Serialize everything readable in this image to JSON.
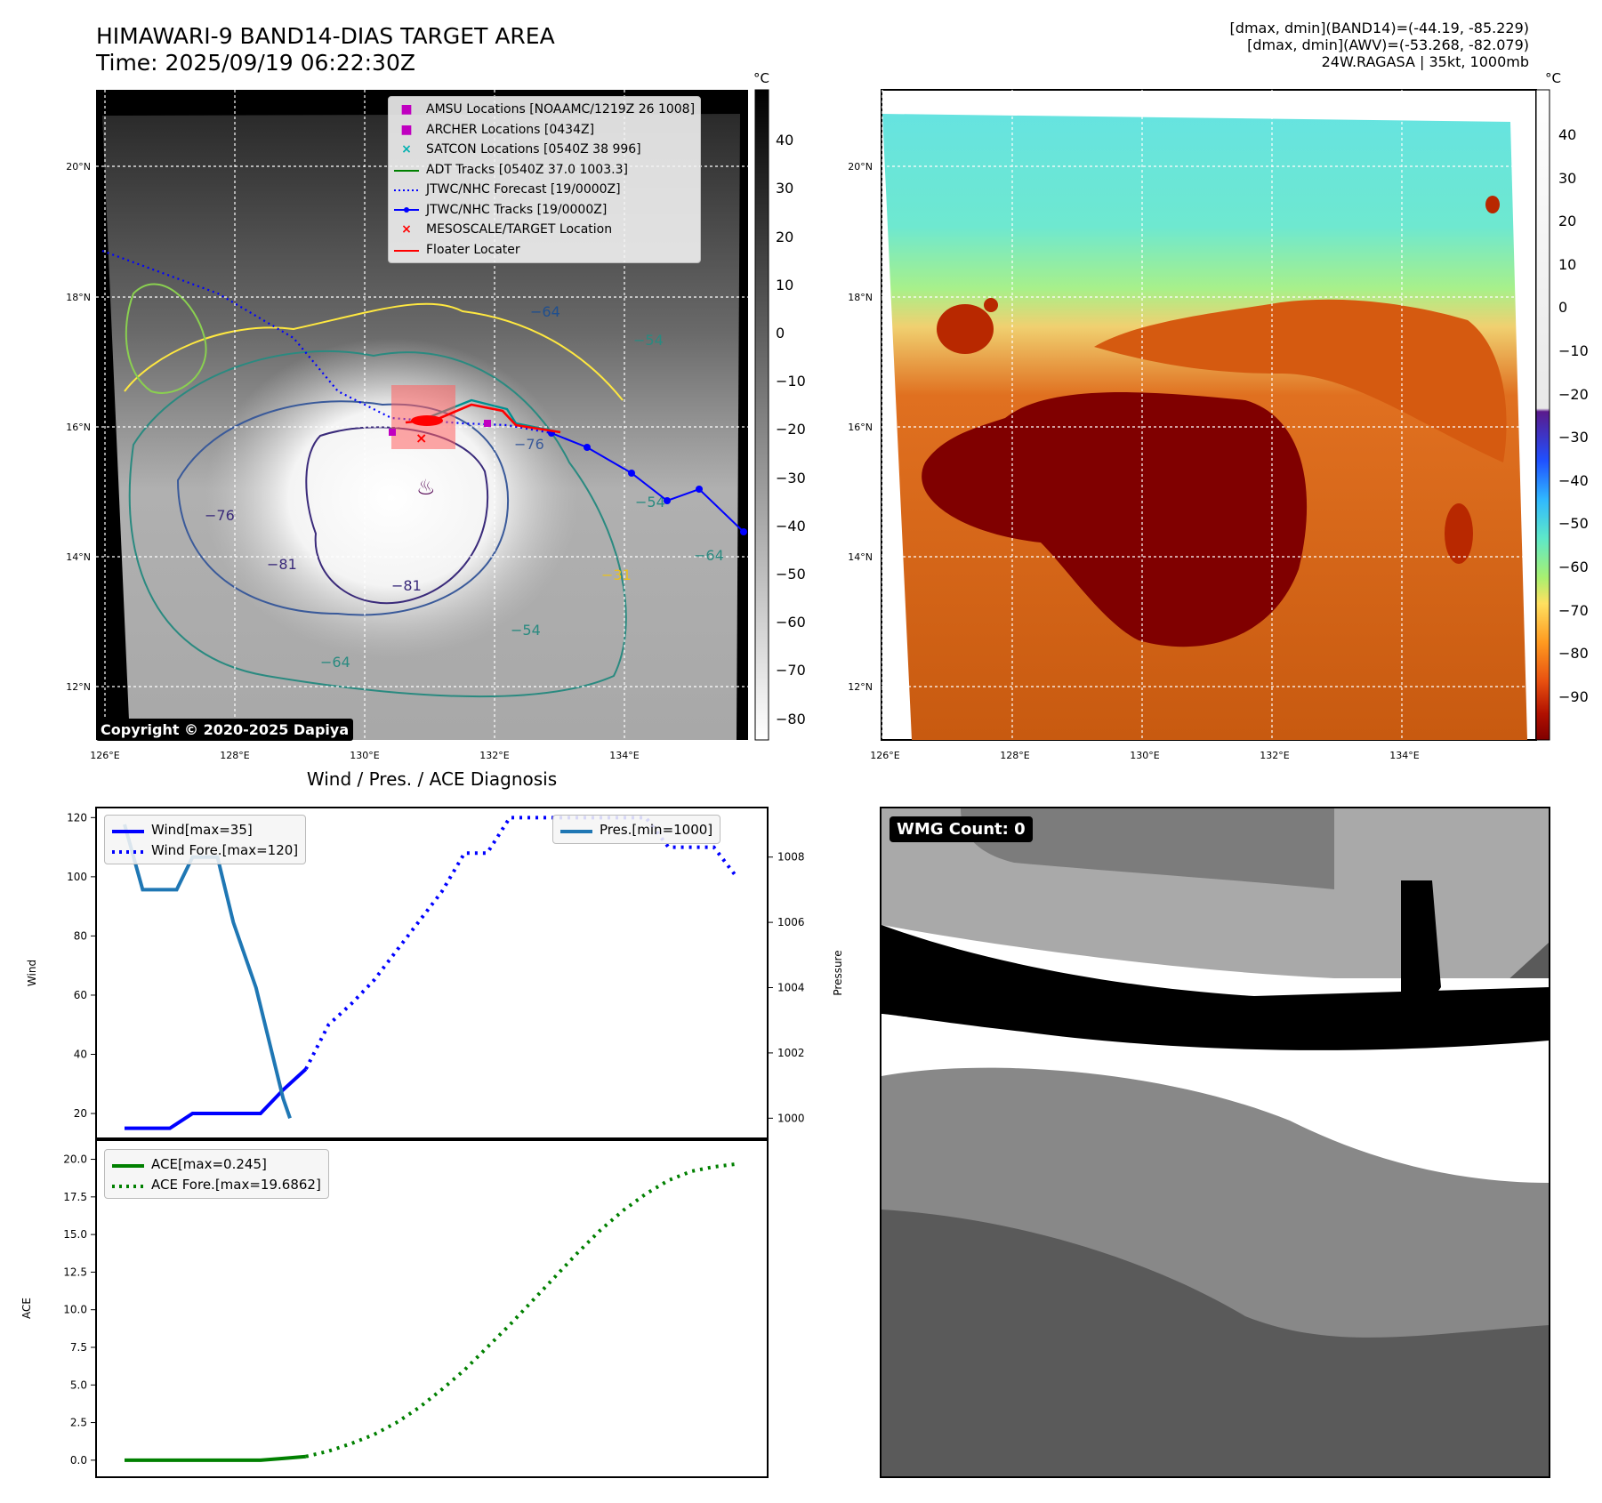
{
  "header": {
    "title": "HIMAWARI-9 BAND14-DIAS TARGET AREA",
    "time": "Time: 2025/09/19 06:22:30Z",
    "meta_band14": "[dmax, dmin](BAND14)=(-44.19, -85.229)",
    "meta_awv": "[dmax, dmin](AWV)=(-53.268, -82.079)",
    "meta_storm": "24W.RAGASA | 35kt, 1000mb"
  },
  "map": {
    "lon_labels": [
      "126°E",
      "128°E",
      "130°E",
      "132°E",
      "134°E"
    ],
    "lat_labels": [
      "20°N",
      "18°N",
      "16°N",
      "14°N",
      "12°N"
    ],
    "copyright": "Copyright © 2020-2025 Dapiya",
    "contour_labels": [
      "−64",
      "−54",
      "−76",
      "−76",
      "−81",
      "−81",
      "−54",
      "−64",
      "−54",
      "−64",
      "−31"
    ],
    "legend": [
      {
        "label": "AMSU Locations [NOAAMC/1219Z 26 1008]",
        "color": "#c000c0",
        "marker": "■"
      },
      {
        "label": "ARCHER Locations [0434Z]",
        "color": "#c000c0",
        "marker": "■"
      },
      {
        "label": "SATCON Locations [0540Z 38 996]",
        "color": "#00b0b0",
        "marker": "×"
      },
      {
        "label": "ADT Tracks [0540Z 37.0 1003.3]",
        "color": "#008000",
        "marker": "line"
      },
      {
        "label": "JTWC/NHC Forecast [19/0000Z]",
        "color": "#0000ff",
        "marker": "dotted"
      },
      {
        "label": "JTWC/NHC Tracks [19/0000Z]",
        "color": "#0000ff",
        "marker": "line-dot"
      },
      {
        "label": "MESOSCALE/TARGET Location",
        "color": "#ff0000",
        "marker": "×"
      },
      {
        "label": "Floater Locater",
        "color": "#ff0000",
        "marker": "line"
      }
    ],
    "colorbar_unit": "°C",
    "colorbar_ticks": [
      "40",
      "30",
      "20",
      "10",
      "0",
      "−10",
      "−20",
      "−30",
      "−40",
      "−50",
      "−60",
      "−70",
      "−80"
    ]
  },
  "awv": {
    "lon_labels": [
      "126°E",
      "128°E",
      "130°E",
      "132°E",
      "134°E"
    ],
    "lat_labels": [
      "20°N",
      "18°N",
      "16°N",
      "14°N",
      "12°N"
    ],
    "colorbar_unit": "°C",
    "colorbar_ticks": [
      "40",
      "30",
      "20",
      "10",
      "0",
      "−10",
      "−20",
      "−30",
      "−40",
      "−50",
      "−60",
      "−70",
      "−80",
      "−90"
    ]
  },
  "wmg": {
    "label": "WMG Count: 0"
  },
  "colors": {
    "wind": "#0000ff",
    "pressure": "#1f77b4",
    "ace": "#008000",
    "map_bg": "#1a1a1a"
  },
  "chart_data": [
    {
      "type": "line",
      "title": "Wind / Pres. / ACE Diagnosis",
      "ylabel": "Wind",
      "y2label": "Pressure",
      "ylim": [
        14,
        121
      ],
      "y2lim": [
        999.6,
        1009.3
      ],
      "yticks": [
        20,
        40,
        60,
        80,
        100,
        120
      ],
      "y2ticks": [
        1000,
        1002,
        1004,
        1006,
        1008
      ],
      "series": [
        {
          "name": "Wind[max=35]",
          "axis": "left",
          "style": "solid",
          "x": [
            0,
            1,
            2,
            3,
            4,
            5,
            6,
            7,
            8
          ],
          "values": [
            15,
            15,
            15,
            20,
            20,
            20,
            20,
            28,
            35
          ]
        },
        {
          "name": "Wind Fore.[max=120]",
          "axis": "left",
          "style": "dotted",
          "x": [
            8,
            9,
            10,
            11,
            12,
            13,
            14,
            15,
            16,
            17,
            18,
            19,
            20,
            21,
            22,
            23,
            24,
            25,
            26,
            27
          ],
          "values": [
            35,
            50,
            57,
            65,
            75,
            85,
            95,
            108,
            108,
            120,
            120,
            120,
            120,
            120,
            120,
            120,
            110,
            110,
            110,
            100
          ]
        },
        {
          "name": "Pres.[min=1000]",
          "axis": "right",
          "style": "solid",
          "x": [
            0,
            0.8,
            2.3,
            3.0,
            3.6,
            4.1,
            4.8,
            5.8,
            7.0,
            7.3
          ],
          "values": [
            1009,
            1007,
            1007,
            1008,
            1008,
            1008,
            1006,
            1004,
            1000.6,
            1000
          ]
        }
      ]
    },
    {
      "type": "line",
      "ylabel": "ACE",
      "ylim": [
        -0.6,
        20.8
      ],
      "yticks": [
        0.0,
        2.5,
        5.0,
        7.5,
        10.0,
        12.5,
        15.0,
        17.5,
        20.0
      ],
      "ytick_labels": [
        "0.0",
        "2.5",
        "5.0",
        "7.5",
        "10.0",
        "12.5",
        "15.0",
        "17.5",
        "20.0"
      ],
      "series": [
        {
          "name": "ACE[max=0.245]",
          "style": "solid",
          "x": [
            0,
            1,
            2,
            3,
            4,
            5,
            6,
            7,
            8
          ],
          "values": [
            0,
            0,
            0,
            0,
            0,
            0,
            0,
            0.12,
            0.245
          ]
        },
        {
          "name": "ACE Fore.[max=19.6862]",
          "style": "dotted",
          "x": [
            8,
            9,
            10,
            11,
            12,
            13,
            14,
            15,
            16,
            17,
            18,
            19,
            20,
            21,
            22,
            23,
            24,
            25,
            26,
            27
          ],
          "values": [
            0.245,
            0.6,
            1.1,
            1.7,
            2.5,
            3.5,
            4.7,
            6.0,
            7.5,
            9.0,
            10.6,
            12.2,
            13.8,
            15.3,
            16.6,
            17.7,
            18.6,
            19.2,
            19.5,
            19.6862
          ]
        }
      ]
    }
  ]
}
